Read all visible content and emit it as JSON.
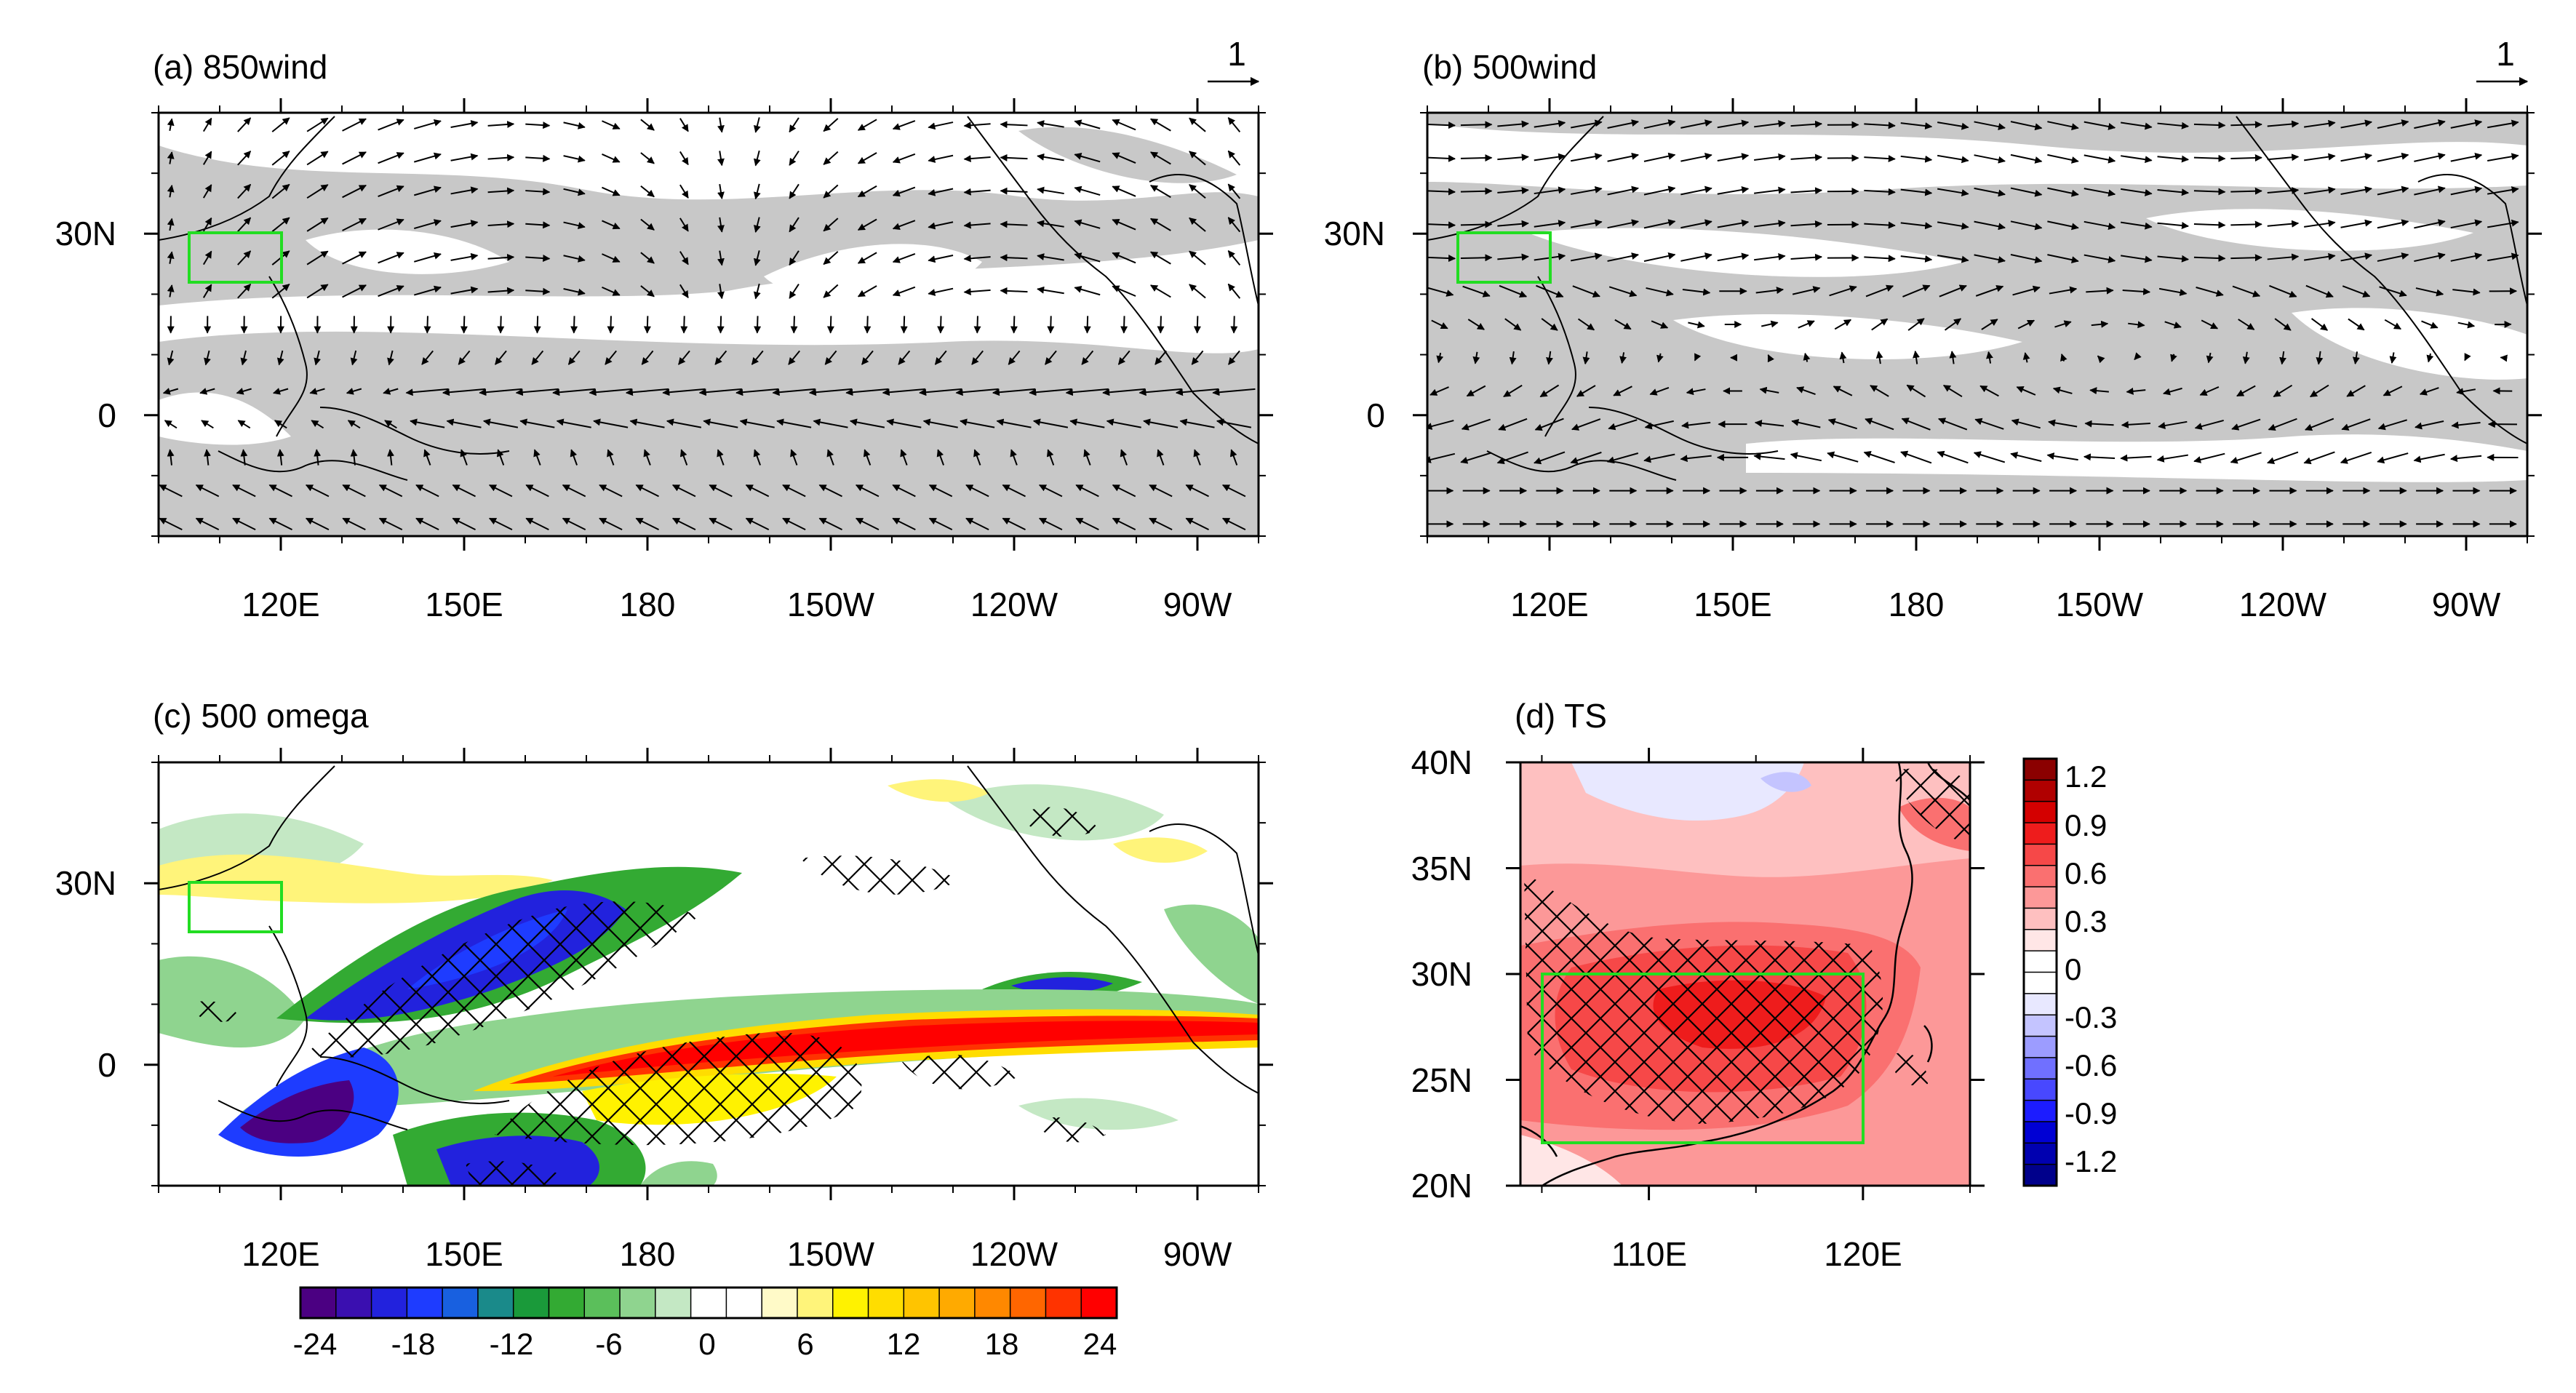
{
  "chart_data": [
    {
      "id": "a",
      "type": "vector",
      "title": "(a) 850wind",
      "reference_vector": "1",
      "x_ticks": [
        "120E",
        "150E",
        "180",
        "150W",
        "120W",
        "90W"
      ],
      "y_ticks": [
        "30N",
        "0"
      ],
      "xlim": [
        100,
        280
      ],
      "ylim": [
        -20,
        50
      ],
      "box": {
        "lon": [
          105,
          120
        ],
        "lat": [
          22,
          30
        ]
      },
      "colors": {
        "shading": "#c8c8c8",
        "box": "#22dd22",
        "vector": "#000000"
      }
    },
    {
      "id": "b",
      "type": "vector",
      "title": "(b) 500wind",
      "reference_vector": "1",
      "x_ticks": [
        "120E",
        "150E",
        "180",
        "150W",
        "120W",
        "90W"
      ],
      "y_ticks": [
        "30N",
        "0"
      ],
      "xlim": [
        100,
        280
      ],
      "ylim": [
        -20,
        50
      ],
      "box": {
        "lon": [
          105,
          120
        ],
        "lat": [
          22,
          30
        ]
      },
      "colors": {
        "shading": "#c8c8c8",
        "box": "#22dd22",
        "vector": "#000000"
      }
    },
    {
      "id": "c",
      "type": "heatmap",
      "title": "(c) 500 omega",
      "x_ticks": [
        "120E",
        "150E",
        "180",
        "150W",
        "120W",
        "90W"
      ],
      "y_ticks": [
        "30N",
        "0"
      ],
      "xlim": [
        100,
        280
      ],
      "ylim": [
        -20,
        50
      ],
      "box": {
        "lon": [
          105,
          120
        ],
        "lat": [
          22,
          30
        ]
      },
      "colorbar": {
        "labels": [
          "-24",
          "-18",
          "-12",
          "-6",
          "0",
          "6",
          "12",
          "18",
          "24"
        ],
        "colors": [
          "#4b0082",
          "#3a0fb0",
          "#2222dd",
          "#1e3cff",
          "#1860e0",
          "#1a8a8a",
          "#1a9a3a",
          "#33aa33",
          "#5bbf5b",
          "#8fd48f",
          "#c4e8c4",
          "#ffffff",
          "#ffffff",
          "#fffac8",
          "#fff47a",
          "#fff200",
          "#ffdd00",
          "#ffc400",
          "#ffaa00",
          "#ff8800",
          "#ff6600",
          "#ff3300",
          "#ff0000"
        ]
      }
    },
    {
      "id": "d",
      "type": "heatmap",
      "title": "(d) TS",
      "x_ticks": [
        "110E",
        "120E"
      ],
      "y_ticks": [
        "40N",
        "35N",
        "30N",
        "25N",
        "20N"
      ],
      "xlim": [
        104,
        125
      ],
      "ylim": [
        20,
        40
      ],
      "box": {
        "lon": [
          105,
          120
        ],
        "lat": [
          22,
          30
        ]
      },
      "colorbar": {
        "labels": [
          "1.2",
          "0.9",
          "0.6",
          "0.3",
          "0",
          "-0.3",
          "-0.6",
          "-0.9",
          "-1.2"
        ],
        "colors": [
          "#8b0000",
          "#b00000",
          "#d40000",
          "#ee1c1c",
          "#f64848",
          "#fa7070",
          "#fc9898",
          "#fec0c0",
          "#ffe6e6",
          "#ffffff",
          "#ffffff",
          "#e8e8ff",
          "#c4c4ff",
          "#9c9cff",
          "#7070ff",
          "#4848ff",
          "#1c1cff",
          "#0000d4",
          "#0000b0",
          "#00008b"
        ]
      }
    }
  ]
}
